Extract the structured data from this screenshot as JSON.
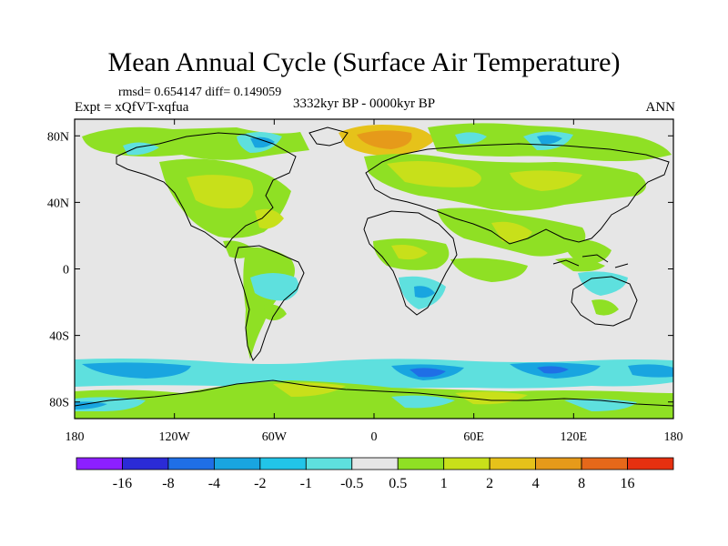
{
  "title": "Mean Annual Cycle (Surface Air Temperature)",
  "stats": "rmsd= 0.654147 diff= 0.149059",
  "experiment": "Expt = xQfVT-xqfua",
  "period": "3332kyr BP - 0000kyr BP",
  "season": "ANN",
  "map": {
    "projection": "cylindrical-equidistant",
    "lon_range": [
      -180,
      180
    ],
    "lat_range": [
      -90,
      90
    ],
    "lat_labels": [
      {
        "lat": 80,
        "label": "80N"
      },
      {
        "lat": 40,
        "label": "40N"
      },
      {
        "lat": 0,
        "label": "0"
      },
      {
        "lat": -40,
        "label": "40S"
      },
      {
        "lat": -80,
        "label": "80S"
      }
    ],
    "lon_labels": [
      {
        "lon": -180,
        "label": "180"
      },
      {
        "lon": -120,
        "label": "120W"
      },
      {
        "lon": -60,
        "label": "60W"
      },
      {
        "lon": 0,
        "label": "0"
      },
      {
        "lon": 60,
        "label": "60E"
      },
      {
        "lon": 120,
        "label": "120E"
      },
      {
        "lon": 180,
        "label": "180"
      }
    ]
  },
  "colorbar": {
    "labels": [
      "-16",
      "-8",
      "-4",
      "-2",
      "-1",
      "-0.5",
      "0.5",
      "1",
      "2",
      "4",
      "8",
      "16"
    ],
    "colors": [
      "#8c1fff",
      "#2b2bd6",
      "#1f6fe6",
      "#19a5e0",
      "#22c5e8",
      "#5ee0de",
      "#e6e6e6",
      "#8fe024",
      "#c8e01a",
      "#e6c21a",
      "#e69a1a",
      "#e6681a",
      "#e63010"
    ]
  }
}
